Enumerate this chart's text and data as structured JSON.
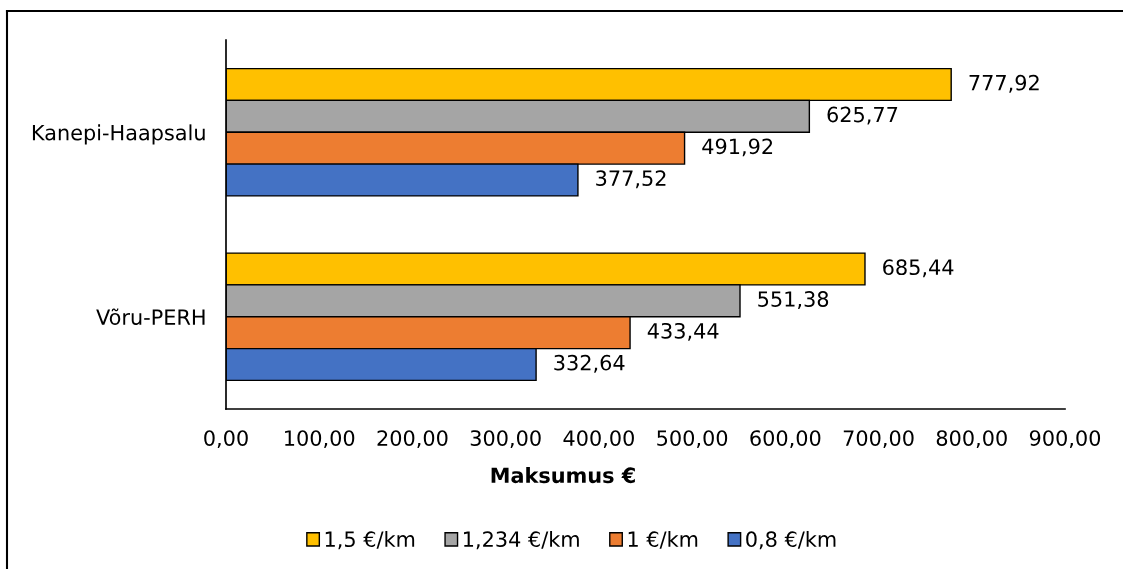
{
  "chart_data": {
    "type": "bar",
    "orientation": "horizontal",
    "categories": [
      "Kanepi-Haapsalu",
      "Võru-PERH"
    ],
    "series": [
      {
        "name": "1,5 €/km",
        "color": "#ffc000",
        "values": [
          777.92,
          685.44
        ],
        "value_labels": [
          "777,92",
          "685,44"
        ]
      },
      {
        "name": "1,234 €/km",
        "color": "#a5a5a5",
        "values": [
          625.77,
          551.38
        ],
        "value_labels": [
          "625,77",
          "551,38"
        ]
      },
      {
        "name": "1 €/km",
        "color": "#ed7d31",
        "values": [
          491.92,
          433.44
        ],
        "value_labels": [
          "491,92",
          "433,44"
        ]
      },
      {
        "name": "0,8 €/km",
        "color": "#4472c4",
        "values": [
          377.52,
          332.64
        ],
        "value_labels": [
          "377,52",
          "332,64"
        ]
      }
    ],
    "xlabel": "Maksumus €",
    "xlim": [
      0,
      900
    ],
    "xticks": [
      {
        "value": 0,
        "label": "0,00"
      },
      {
        "value": 100,
        "label": "100,00"
      },
      {
        "value": 200,
        "label": "200,00"
      },
      {
        "value": 300,
        "label": "300,00"
      },
      {
        "value": 400,
        "label": "400,00"
      },
      {
        "value": 500,
        "label": "500,00"
      },
      {
        "value": 600,
        "label": "600,00"
      },
      {
        "value": 700,
        "label": "700,00"
      },
      {
        "value": 800,
        "label": "800,00"
      },
      {
        "value": 900,
        "label": "900,00"
      }
    ],
    "legend": "bottom",
    "grid": false
  }
}
